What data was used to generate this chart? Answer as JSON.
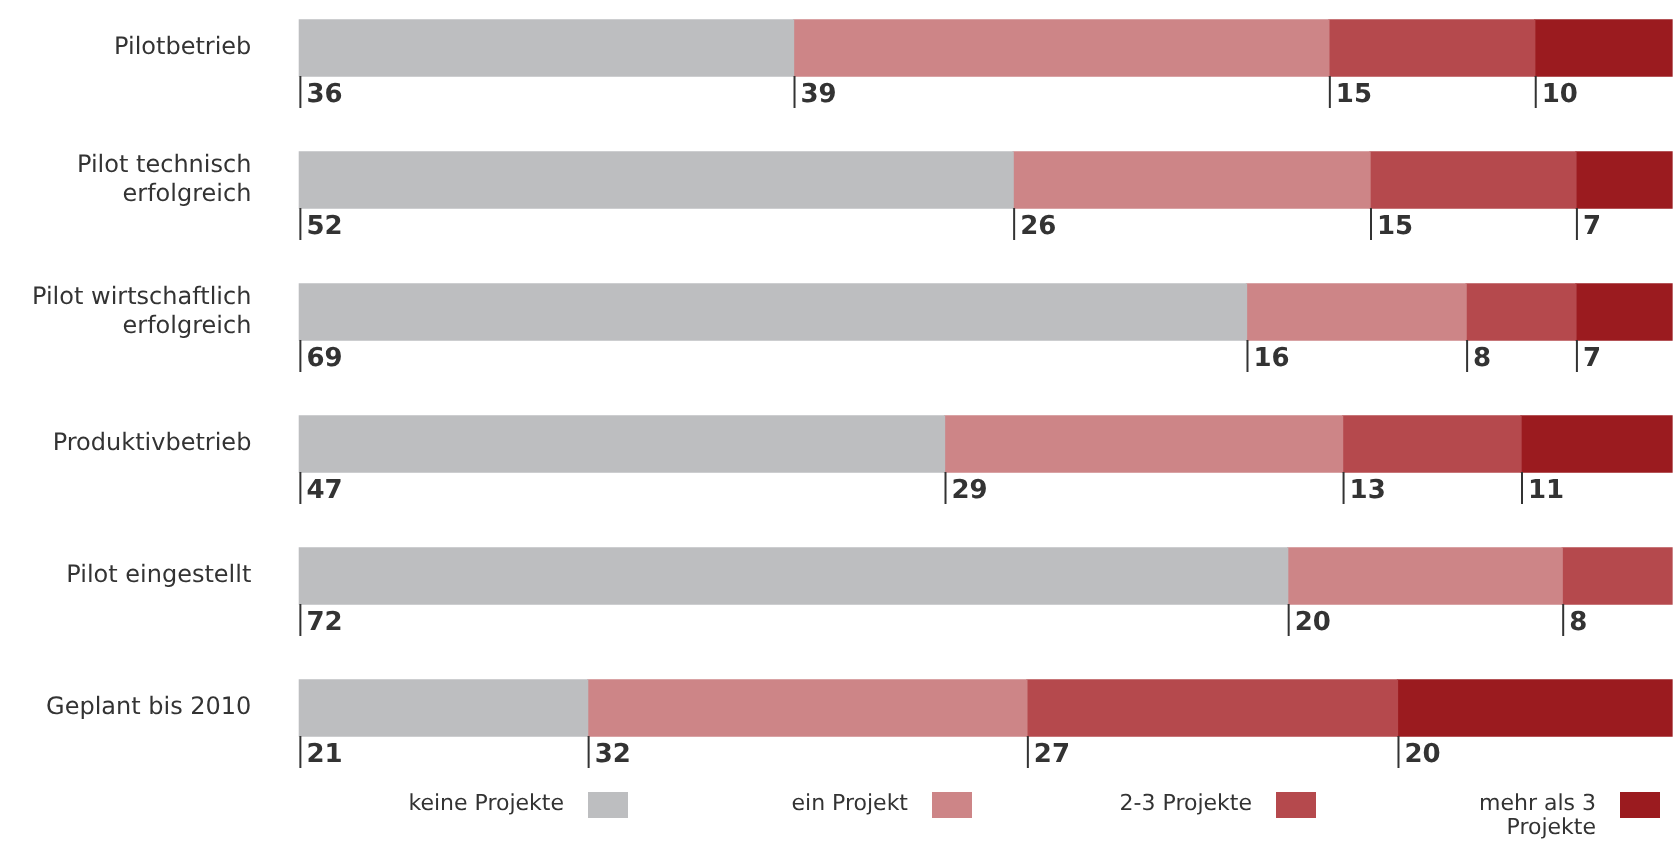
{
  "chart_data": {
    "type": "bar",
    "orientation": "horizontal",
    "stacked": true,
    "data_labels": true,
    "tick_labels": "y",
    "legend": "bottom",
    "categories": [
      "Pilotbetrieb",
      "Pilot technisch erfolgreich",
      "Pilot wirtschaftlich erfolgreich",
      "Produktivbetrieb",
      "Pilot eingestellt",
      "Geplant bis 2010"
    ],
    "series": [
      {
        "name": "keine Projekte",
        "color": "#bdbec0",
        "values": [
          36,
          52,
          69,
          47,
          72,
          21
        ]
      },
      {
        "name": "ein Projekt",
        "color": "#cd8587",
        "values": [
          39,
          26,
          16,
          29,
          20,
          32
        ]
      },
      {
        "name": "2-3 Projekte",
        "color": "#b5494d",
        "values": [
          15,
          15,
          8,
          13,
          8,
          27
        ]
      },
      {
        "name": "mehr als 3 Projekte",
        "color": "#9b1b1f",
        "values": [
          10,
          7,
          7,
          11,
          null,
          20
        ]
      }
    ]
  }
}
